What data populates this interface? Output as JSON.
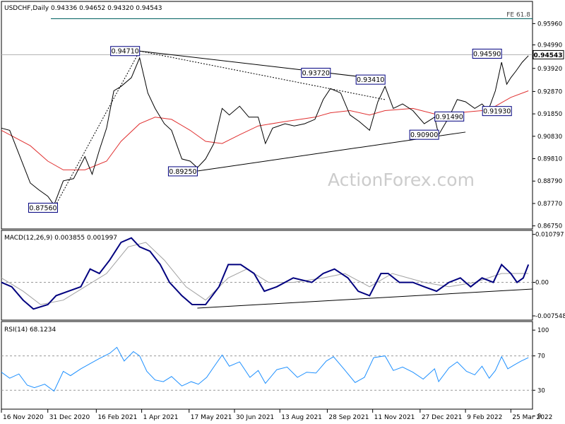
{
  "chart_data": [
    {
      "type": "line",
      "panel": "price",
      "title": "USDCHF,Daily",
      "ohlc": [
        "0.94336",
        "0.94652",
        "0.94320",
        "0.94543"
      ],
      "ylim": [
        0.8661,
        0.9697
      ],
      "yticks": [
        "0.95960",
        "0.94990",
        "0.93920",
        "0.92870",
        "0.91850",
        "0.90830",
        "0.89810",
        "0.88790",
        "0.87770",
        "0.86750"
      ],
      "current_price": "0.94543",
      "fib_label": "FE 61.8",
      "fib_level": 0.9618,
      "watermark": "ActionForex.com",
      "pivot_labels": [
        {
          "text": "0.94710",
          "date": "2021-03-30",
          "value": 0.9471
        },
        {
          "text": "0.87560",
          "date": "2021-01-06",
          "value": 0.8756
        },
        {
          "text": "0.89250",
          "date": "2021-05-25",
          "value": 0.8925
        },
        {
          "text": "0.93720",
          "date": "2021-10-01",
          "value": 0.9372
        },
        {
          "text": "0.93410",
          "date": "2021-11-23",
          "value": 0.9341
        },
        {
          "text": "0.90900",
          "date": "2022-01-14",
          "value": 0.909
        },
        {
          "text": "0.91490",
          "date": "2022-01-24",
          "value": 0.9149
        },
        {
          "text": "0.91930",
          "date": "2022-03-03",
          "value": 0.9193
        },
        {
          "text": "0.94590",
          "date": "2022-03-16",
          "value": 0.9459
        }
      ],
      "price_series": [
        [
          "2020-11-16",
          0.912
        ],
        [
          "2020-11-24",
          0.911
        ],
        [
          "2020-12-04",
          0.899
        ],
        [
          "2020-12-14",
          0.887
        ],
        [
          "2020-12-22",
          0.884
        ],
        [
          "2020-12-31",
          0.881
        ],
        [
          "2021-01-06",
          0.877
        ],
        [
          "2021-01-15",
          0.888
        ],
        [
          "2021-01-25",
          0.889
        ],
        [
          "2021-02-05",
          0.899
        ],
        [
          "2021-02-12",
          0.891
        ],
        [
          "2021-02-19",
          0.902
        ],
        [
          "2021-02-26",
          0.912
        ],
        [
          "2021-03-05",
          0.929
        ],
        [
          "2021-03-12",
          0.931
        ],
        [
          "2021-03-22",
          0.935
        ],
        [
          "2021-03-30",
          0.944
        ],
        [
          "2021-04-07",
          0.928
        ],
        [
          "2021-04-14",
          0.921
        ],
        [
          "2021-04-23",
          0.914
        ],
        [
          "2021-04-30",
          0.911
        ],
        [
          "2021-05-10",
          0.898
        ],
        [
          "2021-05-18",
          0.897
        ],
        [
          "2021-05-25",
          0.894
        ],
        [
          "2021-06-02",
          0.898
        ],
        [
          "2021-06-10",
          0.905
        ],
        [
          "2021-06-18",
          0.921
        ],
        [
          "2021-06-25",
          0.918
        ],
        [
          "2021-07-05",
          0.922
        ],
        [
          "2021-07-14",
          0.917
        ],
        [
          "2021-07-23",
          0.917
        ],
        [
          "2021-07-30",
          0.905
        ],
        [
          "2021-08-06",
          0.912
        ],
        [
          "2021-08-18",
          0.914
        ],
        [
          "2021-08-27",
          0.913
        ],
        [
          "2021-09-06",
          0.914
        ],
        [
          "2021-09-16",
          0.916
        ],
        [
          "2021-09-24",
          0.925
        ],
        [
          "2021-10-01",
          0.93
        ],
        [
          "2021-10-11",
          0.928
        ],
        [
          "2021-10-20",
          0.918
        ],
        [
          "2021-10-29",
          0.915
        ],
        [
          "2021-11-08",
          0.911
        ],
        [
          "2021-11-16",
          0.924
        ],
        [
          "2021-11-23",
          0.931
        ],
        [
          "2021-12-01",
          0.921
        ],
        [
          "2021-12-10",
          0.923
        ],
        [
          "2021-12-20",
          0.92
        ],
        [
          "2021-12-31",
          0.914
        ],
        [
          "2022-01-10",
          0.917
        ],
        [
          "2022-01-14",
          0.909
        ],
        [
          "2022-01-24",
          0.917
        ],
        [
          "2022-02-01",
          0.925
        ],
        [
          "2022-02-09",
          0.924
        ],
        [
          "2022-02-18",
          0.921
        ],
        [
          "2022-02-25",
          0.923
        ],
        [
          "2022-03-03",
          0.92
        ],
        [
          "2022-03-10",
          0.929
        ],
        [
          "2022-03-16",
          0.942
        ],
        [
          "2022-03-21",
          0.932
        ],
        [
          "2022-03-25",
          0.935
        ],
        [
          "2022-03-30",
          0.938
        ],
        [
          "2022-04-05",
          0.942
        ],
        [
          "2022-04-11",
          0.945
        ]
      ],
      "ma_series": [
        [
          "2020-11-16",
          0.911
        ],
        [
          "2020-12-14",
          0.904
        ],
        [
          "2020-12-31",
          0.897
        ],
        [
          "2021-01-15",
          0.893
        ],
        [
          "2021-02-05",
          0.893
        ],
        [
          "2021-02-26",
          0.897
        ],
        [
          "2021-03-12",
          0.906
        ],
        [
          "2021-03-30",
          0.914
        ],
        [
          "2021-04-14",
          0.917
        ],
        [
          "2021-04-30",
          0.916
        ],
        [
          "2021-05-18",
          0.911
        ],
        [
          "2021-06-02",
          0.906
        ],
        [
          "2021-06-18",
          0.905
        ],
        [
          "2021-07-05",
          0.909
        ],
        [
          "2021-07-23",
          0.913
        ],
        [
          "2021-08-18",
          0.915
        ],
        [
          "2021-09-16",
          0.917
        ],
        [
          "2021-10-01",
          0.919
        ],
        [
          "2021-10-20",
          0.92
        ],
        [
          "2021-11-08",
          0.918
        ],
        [
          "2021-11-23",
          0.92
        ],
        [
          "2021-12-20",
          0.921
        ],
        [
          "2022-01-14",
          0.918
        ],
        [
          "2022-02-01",
          0.919
        ],
        [
          "2022-02-25",
          0.92
        ],
        [
          "2022-03-10",
          0.922
        ],
        [
          "2022-03-25",
          0.926
        ],
        [
          "2022-04-11",
          0.929
        ]
      ],
      "trendlines": [
        {
          "style": "solid",
          "points": [
            [
              "2021-03-30",
              0.9471
            ],
            [
              "2021-11-23",
              0.9341
            ]
          ]
        },
        {
          "style": "solid",
          "points": [
            [
              "2021-05-25",
              0.8925
            ],
            [
              "2022-02-09",
              0.9102
            ]
          ]
        },
        {
          "style": "dashed",
          "points": [
            [
              "2021-03-30",
              0.9471
            ],
            [
              "2021-11-23",
              0.925
            ]
          ]
        },
        {
          "style": "dashed",
          "points": [
            [
              "2021-01-06",
              0.8756
            ],
            [
              "2021-03-30",
              0.9471
            ]
          ]
        }
      ]
    },
    {
      "type": "line",
      "panel": "macd",
      "title": "MACD(12,26,9) 0.003855 0.001997",
      "ylim": [
        -0.0085,
        0.0117
      ],
      "yticks": [
        "0.010797",
        "0.00",
        "-0.007548"
      ],
      "macd_series": [
        [
          "2020-11-16",
          0.0
        ],
        [
          "2020-11-26",
          -0.001
        ],
        [
          "2020-12-07",
          -0.004
        ],
        [
          "2020-12-17",
          -0.006
        ],
        [
          "2020-12-31",
          -0.005
        ],
        [
          "2021-01-08",
          -0.003
        ],
        [
          "2021-01-20",
          -0.002
        ],
        [
          "2021-02-01",
          -0.001
        ],
        [
          "2021-02-10",
          0.003
        ],
        [
          "2021-02-19",
          0.002
        ],
        [
          "2021-03-01",
          0.005
        ],
        [
          "2021-03-12",
          0.009
        ],
        [
          "2021-03-22",
          0.01
        ],
        [
          "2021-03-30",
          0.008
        ],
        [
          "2021-04-09",
          0.007
        ],
        [
          "2021-04-19",
          0.004
        ],
        [
          "2021-04-28",
          0.0
        ],
        [
          "2021-05-10",
          -0.003
        ],
        [
          "2021-05-20",
          -0.005
        ],
        [
          "2021-06-02",
          -0.005
        ],
        [
          "2021-06-15",
          -0.001
        ],
        [
          "2021-06-24",
          0.004
        ],
        [
          "2021-07-06",
          0.004
        ],
        [
          "2021-07-19",
          0.002
        ],
        [
          "2021-07-29",
          -0.002
        ],
        [
          "2021-08-10",
          -0.001
        ],
        [
          "2021-08-26",
          0.001
        ],
        [
          "2021-09-13",
          0.0
        ],
        [
          "2021-09-24",
          0.002
        ],
        [
          "2021-10-05",
          0.003
        ],
        [
          "2021-10-18",
          0.001
        ],
        [
          "2021-10-28",
          -0.002
        ],
        [
          "2021-11-08",
          -0.003
        ],
        [
          "2021-11-19",
          0.002
        ],
        [
          "2021-11-26",
          0.002
        ],
        [
          "2021-12-07",
          0.0
        ],
        [
          "2021-12-20",
          0.0
        ],
        [
          "2021-12-31",
          -0.001
        ],
        [
          "2022-01-12",
          -0.002
        ],
        [
          "2022-01-24",
          0.0
        ],
        [
          "2022-02-04",
          0.001
        ],
        [
          "2022-02-14",
          -0.001
        ],
        [
          "2022-02-25",
          0.001
        ],
        [
          "2022-03-08",
          0.0
        ],
        [
          "2022-03-16",
          0.004
        ],
        [
          "2022-03-25",
          0.002
        ],
        [
          "2022-03-31",
          0.0
        ],
        [
          "2022-04-06",
          0.001
        ],
        [
          "2022-04-11",
          0.004
        ]
      ],
      "signal_series": [
        [
          "2020-11-16",
          0.001
        ],
        [
          "2020-12-07",
          -0.002
        ],
        [
          "2020-12-24",
          -0.005
        ],
        [
          "2021-01-15",
          -0.004
        ],
        [
          "2021-02-05",
          -0.001
        ],
        [
          "2021-02-26",
          0.002
        ],
        [
          "2021-03-19",
          0.008
        ],
        [
          "2021-04-05",
          0.009
        ],
        [
          "2021-04-23",
          0.005
        ],
        [
          "2021-05-14",
          -0.001
        ],
        [
          "2021-06-02",
          -0.004
        ],
        [
          "2021-06-24",
          0.001
        ],
        [
          "2021-07-12",
          0.003
        ],
        [
          "2021-08-02",
          0.0
        ],
        [
          "2021-08-26",
          0.0
        ],
        [
          "2021-09-24",
          0.001
        ],
        [
          "2021-10-15",
          0.002
        ],
        [
          "2021-11-08",
          -0.001
        ],
        [
          "2021-11-30",
          0.002
        ],
        [
          "2021-12-31",
          0.0
        ],
        [
          "2022-01-24",
          -0.001
        ],
        [
          "2022-02-18",
          0.0
        ],
        [
          "2022-03-16",
          0.002
        ],
        [
          "2022-04-11",
          0.002
        ]
      ],
      "trendline": [
        [
          "2021-05-25",
          -0.0058
        ],
        [
          "2022-04-15",
          -0.0015
        ]
      ]
    },
    {
      "type": "line",
      "panel": "rsi",
      "title": "RSI(14) 68.1234",
      "ylim": [
        8,
        110
      ],
      "yticks": [
        "100",
        "70",
        "30",
        "0"
      ],
      "levels": [
        70,
        30
      ],
      "rsi_series": [
        [
          "2020-11-16",
          51
        ],
        [
          "2020-11-24",
          44
        ],
        [
          "2020-12-03",
          49
        ],
        [
          "2020-12-11",
          36
        ],
        [
          "2020-12-18",
          33
        ],
        [
          "2020-12-28",
          37
        ],
        [
          "2021-01-06",
          29
        ],
        [
          "2021-01-15",
          52
        ],
        [
          "2021-01-22",
          47
        ],
        [
          "2021-02-01",
          55
        ],
        [
          "2021-02-10",
          61
        ],
        [
          "2021-02-19",
          67
        ],
        [
          "2021-03-01",
          73
        ],
        [
          "2021-03-08",
          80
        ],
        [
          "2021-03-15",
          64
        ],
        [
          "2021-03-24",
          75
        ],
        [
          "2021-03-30",
          70
        ],
        [
          "2021-04-06",
          52
        ],
        [
          "2021-04-14",
          42
        ],
        [
          "2021-04-22",
          40
        ],
        [
          "2021-04-30",
          46
        ],
        [
          "2021-05-10",
          35
        ],
        [
          "2021-05-19",
          40
        ],
        [
          "2021-05-26",
          37
        ],
        [
          "2021-06-03",
          45
        ],
        [
          "2021-06-11",
          59
        ],
        [
          "2021-06-18",
          71
        ],
        [
          "2021-06-25",
          58
        ],
        [
          "2021-07-05",
          63
        ],
        [
          "2021-07-15",
          45
        ],
        [
          "2021-07-23",
          53
        ],
        [
          "2021-07-30",
          38
        ],
        [
          "2021-08-10",
          54
        ],
        [
          "2021-08-20",
          57
        ],
        [
          "2021-08-30",
          45
        ],
        [
          "2021-09-08",
          51
        ],
        [
          "2021-09-17",
          50
        ],
        [
          "2021-09-27",
          64
        ],
        [
          "2021-10-04",
          69
        ],
        [
          "2021-10-14",
          55
        ],
        [
          "2021-10-25",
          39
        ],
        [
          "2021-11-03",
          45
        ],
        [
          "2021-11-12",
          68
        ],
        [
          "2021-11-23",
          70
        ],
        [
          "2021-12-01",
          53
        ],
        [
          "2021-12-10",
          57
        ],
        [
          "2021-12-20",
          51
        ],
        [
          "2021-12-30",
          43
        ],
        [
          "2022-01-10",
          55
        ],
        [
          "2022-01-14",
          40
        ],
        [
          "2022-01-24",
          56
        ],
        [
          "2022-02-01",
          63
        ],
        [
          "2022-02-10",
          52
        ],
        [
          "2022-02-18",
          48
        ],
        [
          "2022-02-25",
          58
        ],
        [
          "2022-03-04",
          44
        ],
        [
          "2022-03-10",
          53
        ],
        [
          "2022-03-16",
          69
        ],
        [
          "2022-03-22",
          55
        ],
        [
          "2022-03-29",
          60
        ],
        [
          "2022-04-04",
          64
        ],
        [
          "2022-04-11",
          68
        ]
      ]
    }
  ],
  "x_axis": {
    "start": "2020-11-16",
    "end": "2022-04-15",
    "ticks": [
      {
        "label": "16 Nov 2020",
        "date": "2020-11-16"
      },
      {
        "label": "31 Dec 2020",
        "date": "2020-12-31"
      },
      {
        "label": "16 Feb 2021",
        "date": "2021-02-16"
      },
      {
        "label": "1 Apr 2021",
        "date": "2021-04-01"
      },
      {
        "label": "17 May 2021",
        "date": "2021-05-17"
      },
      {
        "label": "30 Jun 2021",
        "date": "2021-06-30"
      },
      {
        "label": "13 Aug 2021",
        "date": "2021-08-13"
      },
      {
        "label": "28 Sep 2021",
        "date": "2021-09-28"
      },
      {
        "label": "11 Nov 2021",
        "date": "2021-11-11"
      },
      {
        "label": "27 Dec 2021",
        "date": "2021-12-27"
      },
      {
        "label": "9 Feb 2022",
        "date": "2022-02-09"
      },
      {
        "label": "25 Mar 2022",
        "date": "2022-03-25"
      }
    ]
  },
  "colors": {
    "price": "#000000",
    "ma": "#e03030",
    "macd": "#00007f",
    "signal": "#a0a0a0",
    "rsi": "#1e90ff",
    "grid_dash": "#9a9a9a",
    "label_border": "#00007f",
    "watermark": "#c8c8c8"
  }
}
